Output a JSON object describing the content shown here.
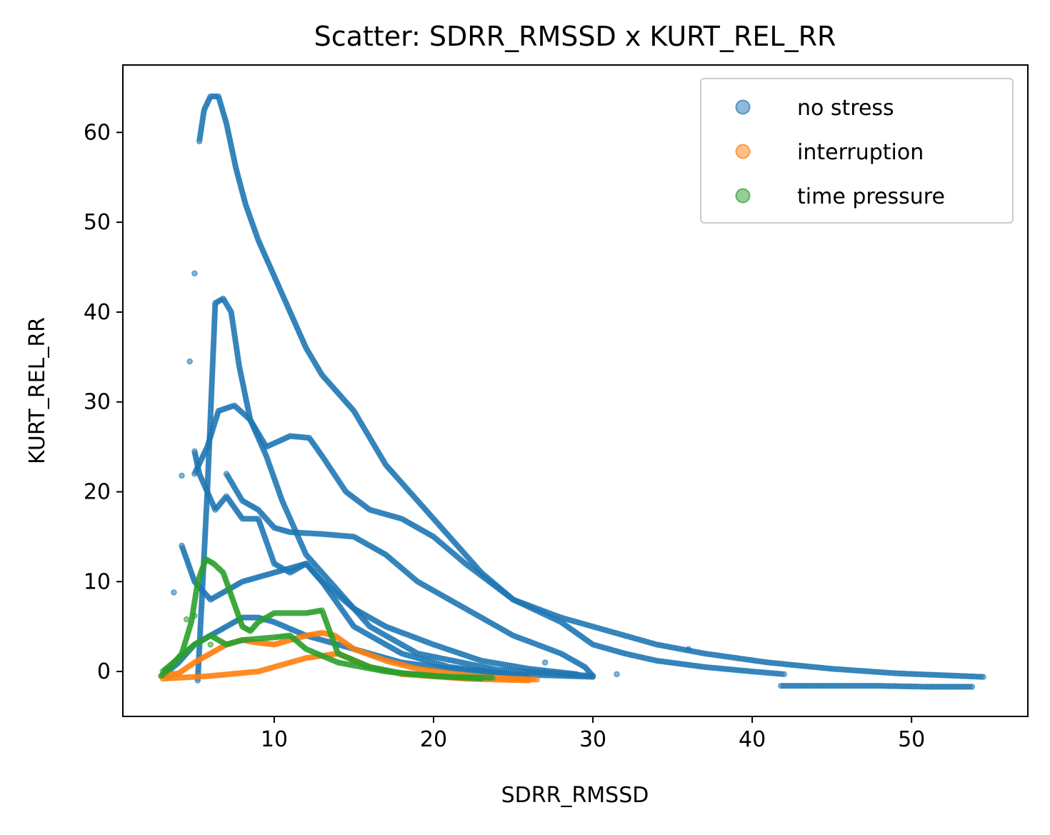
{
  "chart_data": {
    "type": "scatter",
    "title": "Scatter: SDRR_RMSSD x KURT_REL_RR",
    "xlabel": "SDRR_RMSSD",
    "ylabel": "KURT_REL_RR",
    "xlim": [
      0.5,
      57.3
    ],
    "ylim": [
      -5,
      67.5
    ],
    "xticks": [
      10,
      20,
      30,
      40,
      50
    ],
    "yticks": [
      0,
      10,
      20,
      30,
      40,
      50,
      60
    ],
    "grid": false,
    "legend_position": "top-right",
    "series": [
      {
        "name": "no stress",
        "color": "#1f77b4",
        "paths": [
          [
            [
              5.2,
              -1
            ],
            [
              5.8,
              20
            ],
            [
              6.3,
              41
            ],
            [
              6.8,
              41.5
            ],
            [
              7.3,
              40
            ],
            [
              7.8,
              34
            ],
            [
              8.5,
              28
            ],
            [
              9.5,
              24
            ],
            [
              10.5,
              19
            ],
            [
              12,
              13
            ],
            [
              14,
              9
            ],
            [
              16,
              5
            ],
            [
              19,
              2
            ],
            [
              24,
              0.2
            ],
            [
              30,
              -0.5
            ]
          ],
          [
            [
              5.3,
              59
            ],
            [
              5.6,
              62.5
            ],
            [
              6,
              64
            ],
            [
              6.5,
              64
            ],
            [
              7,
              61
            ],
            [
              7.6,
              56
            ],
            [
              8.2,
              52
            ],
            [
              9,
              48
            ],
            [
              10,
              44
            ],
            [
              11,
              40
            ],
            [
              12,
              36
            ],
            [
              13,
              33
            ],
            [
              15,
              29
            ],
            [
              17,
              23
            ],
            [
              19,
              19
            ],
            [
              21,
              15
            ],
            [
              23,
              11
            ],
            [
              25,
              8
            ],
            [
              28,
              6
            ],
            [
              31,
              4.5
            ],
            [
              34,
              3
            ],
            [
              37,
              2
            ],
            [
              41,
              1
            ],
            [
              45,
              0.3
            ],
            [
              49,
              -0.2
            ],
            [
              54.5,
              -0.6
            ]
          ],
          [
            [
              5,
              22
            ],
            [
              5.8,
              25
            ],
            [
              6.5,
              29
            ],
            [
              7.5,
              29.6
            ],
            [
              8.5,
              28
            ],
            [
              9.5,
              25
            ],
            [
              11,
              26.2
            ],
            [
              12.2,
              26
            ],
            [
              13,
              24
            ],
            [
              14.5,
              20
            ],
            [
              16,
              18
            ],
            [
              18,
              17
            ],
            [
              20,
              15
            ],
            [
              22,
              12
            ],
            [
              25,
              8
            ],
            [
              28,
              5.5
            ],
            [
              30,
              3
            ],
            [
              32,
              2
            ],
            [
              34,
              1.2
            ],
            [
              37,
              0.5
            ],
            [
              40,
              0
            ],
            [
              42,
              -0.3
            ]
          ],
          [
            [
              7,
              22
            ],
            [
              8,
              19
            ],
            [
              9,
              18
            ],
            [
              10,
              16
            ],
            [
              11,
              15.5
            ],
            [
              13,
              15.3
            ],
            [
              15,
              15
            ],
            [
              17,
              13
            ],
            [
              19,
              10
            ],
            [
              22,
              7
            ],
            [
              25,
              4
            ],
            [
              28,
              2
            ],
            [
              29.5,
              0.5
            ],
            [
              30,
              -0.5
            ]
          ],
          [
            [
              5,
              24.5
            ],
            [
              5.3,
              22
            ],
            [
              5.8,
              20
            ],
            [
              6.3,
              18
            ],
            [
              7,
              19.5
            ],
            [
              8,
              17
            ],
            [
              9,
              17
            ],
            [
              10,
              12
            ],
            [
              11,
              11
            ],
            [
              12,
              12
            ],
            [
              13,
              10
            ],
            [
              15,
              7
            ],
            [
              17,
              5
            ],
            [
              20,
              3
            ],
            [
              23,
              1.2
            ],
            [
              26,
              0.3
            ],
            [
              29,
              -0.3
            ]
          ],
          [
            [
              4.2,
              14
            ],
            [
              4.6,
              12
            ],
            [
              5,
              10
            ],
            [
              6,
              8
            ],
            [
              7,
              9
            ],
            [
              8,
              10
            ],
            [
              9,
              10.5
            ],
            [
              10,
              11
            ],
            [
              11,
              11.5
            ],
            [
              12,
              12
            ],
            [
              13,
              10
            ],
            [
              15,
              5
            ],
            [
              18,
              2
            ],
            [
              21,
              0.5
            ],
            [
              26,
              -0.5
            ]
          ],
          [
            [
              3,
              -0.5
            ],
            [
              4,
              1
            ],
            [
              5,
              3
            ],
            [
              6,
              4
            ],
            [
              7,
              5
            ],
            [
              8,
              6
            ],
            [
              9,
              6
            ],
            [
              10,
              5.5
            ],
            [
              12,
              4
            ],
            [
              14,
              3
            ],
            [
              16,
              2
            ],
            [
              18,
              1
            ],
            [
              21,
              0.3
            ],
            [
              25,
              -0.3
            ],
            [
              30,
              -0.6
            ]
          ],
          [
            [
              41.8,
              -1.6
            ],
            [
              45,
              -1.6
            ],
            [
              48,
              -1.6
            ],
            [
              51,
              -1.7
            ],
            [
              53.8,
              -1.7
            ]
          ]
        ],
        "points": [
          [
            4.7,
            34.5
          ],
          [
            5,
            44.3
          ],
          [
            4.2,
            21.8
          ],
          [
            3.7,
            8.8
          ],
          [
            3.2,
            0.2
          ],
          [
            27,
            1
          ],
          [
            31.5,
            -0.3
          ],
          [
            36,
            2.5
          ]
        ]
      },
      {
        "name": "interruption",
        "color": "#ff7f0e",
        "paths": [
          [
            [
              2.9,
              -0.5
            ],
            [
              4,
              -0.2
            ],
            [
              5,
              1
            ],
            [
              6,
              2
            ],
            [
              7,
              3
            ],
            [
              8,
              3.5
            ],
            [
              9,
              3.2
            ],
            [
              10,
              3
            ],
            [
              11,
              3.5
            ],
            [
              12,
              4
            ],
            [
              13,
              4.3
            ],
            [
              13.8,
              4
            ],
            [
              15,
              2.5
            ],
            [
              17,
              1.2
            ],
            [
              19,
              0.3
            ],
            [
              21,
              -0.2
            ],
            [
              23,
              -0.6
            ],
            [
              25,
              -0.8
            ],
            [
              26.5,
              -0.9
            ]
          ],
          [
            [
              3,
              -0.8
            ],
            [
              6,
              -0.5
            ],
            [
              9,
              0
            ],
            [
              12,
              1.5
            ],
            [
              14,
              2
            ],
            [
              16,
              0.5
            ],
            [
              18,
              -0.3
            ],
            [
              22,
              -0.8
            ],
            [
              26,
              -1
            ]
          ]
        ],
        "points": []
      },
      {
        "name": "time pressure",
        "color": "#2ca02c",
        "paths": [
          [
            [
              2.9,
              -0.5
            ],
            [
              3.5,
              0.5
            ],
            [
              4.2,
              2
            ],
            [
              4.8,
              5.5
            ],
            [
              5.2,
              10
            ],
            [
              5.7,
              12.5
            ],
            [
              6.2,
              12
            ],
            [
              6.8,
              11
            ],
            [
              7.2,
              9
            ],
            [
              7.6,
              7
            ],
            [
              8,
              5
            ],
            [
              8.5,
              4.5
            ],
            [
              9,
              5.5
            ],
            [
              10,
              6.5
            ],
            [
              11,
              6.5
            ],
            [
              12,
              6.5
            ],
            [
              13,
              6.8
            ],
            [
              14,
              2
            ],
            [
              16,
              0.5
            ],
            [
              18,
              -0.2
            ],
            [
              21,
              -0.6
            ],
            [
              23.7,
              -0.7
            ]
          ],
          [
            [
              3,
              0
            ],
            [
              4,
              1.5
            ],
            [
              5,
              3
            ],
            [
              6,
              4
            ],
            [
              7,
              3
            ],
            [
              8,
              3.5
            ],
            [
              10,
              3.8
            ],
            [
              11,
              4
            ],
            [
              12,
              2.5
            ],
            [
              14,
              1
            ],
            [
              17,
              0
            ],
            [
              20,
              -0.5
            ],
            [
              23,
              -0.8
            ]
          ]
        ],
        "points": [
          [
            4.5,
            5.8
          ],
          [
            5,
            6.2
          ],
          [
            6,
            3
          ]
        ]
      }
    ]
  }
}
